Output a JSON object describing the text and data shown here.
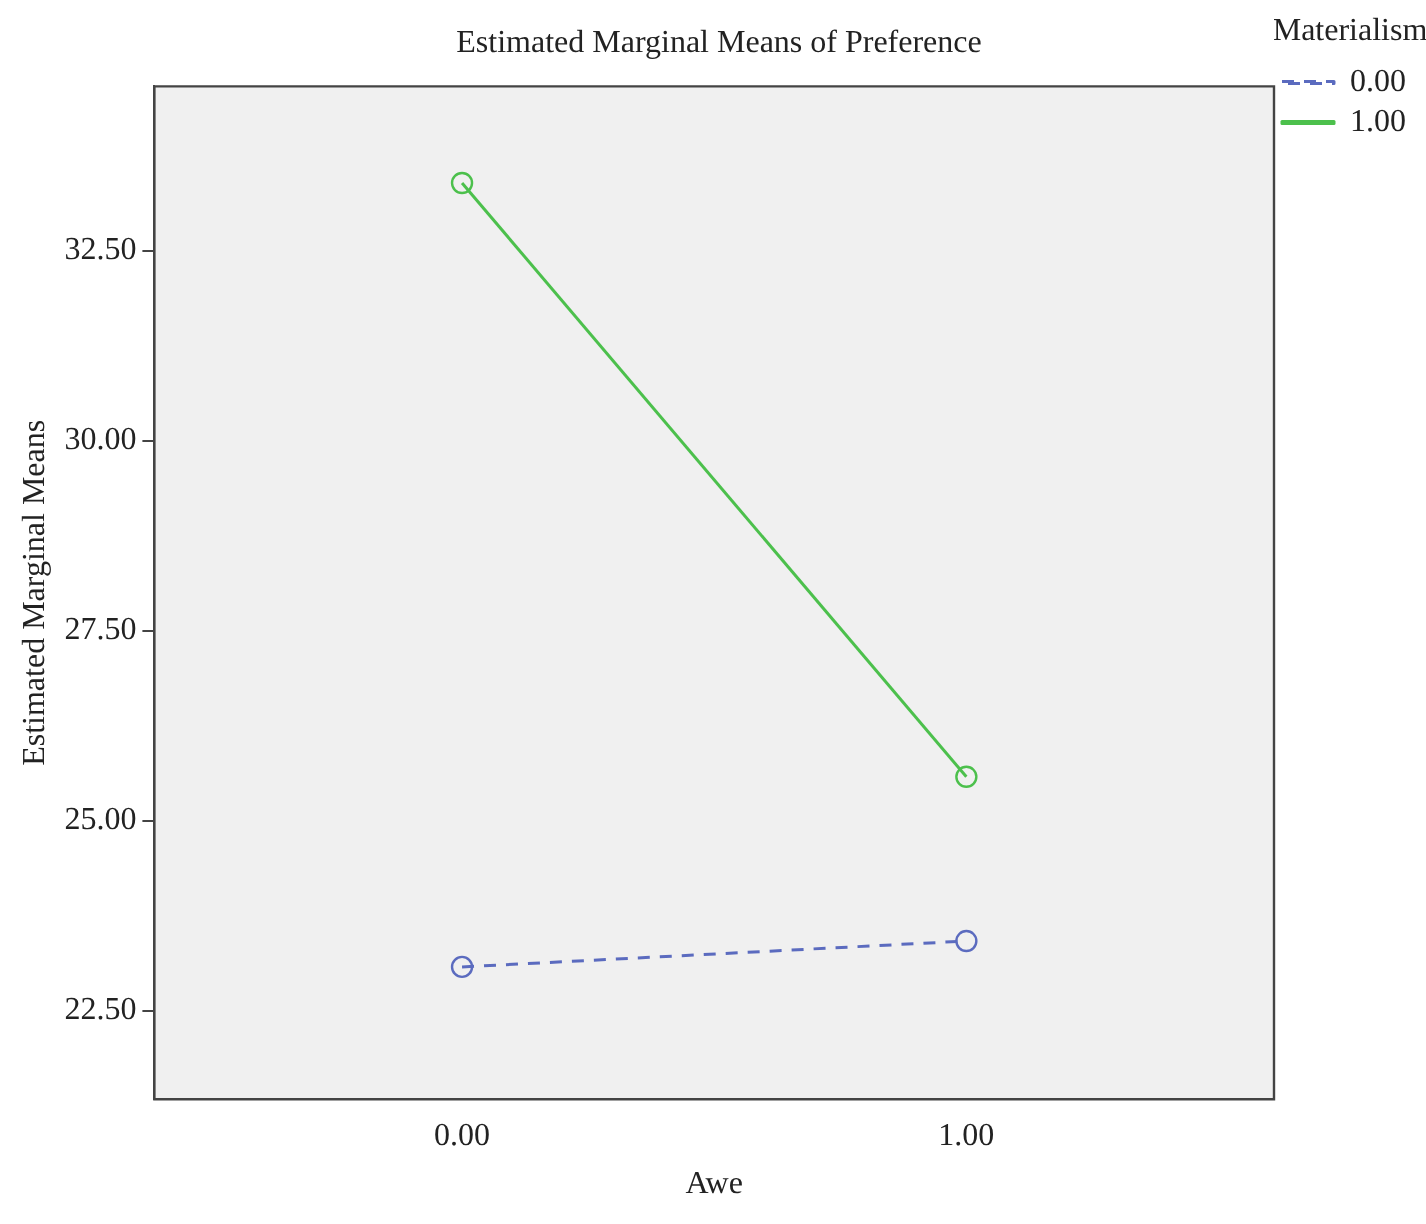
{
  "chart_data": {
    "type": "line",
    "title": "Estimated Marginal Means of Preference",
    "xlabel": "Awe",
    "ylabel": "Estimated Marginal Means",
    "legend_title": "Materialism",
    "x": [
      0,
      1
    ],
    "series": [
      {
        "name": "0.00",
        "color": "#5b6bbf",
        "values": [
          23.08,
          23.42
        ],
        "line_style": "dashed"
      },
      {
        "name": "1.00",
        "color": "#4cc04c",
        "values": [
          33.39,
          25.58
        ],
        "line_style": "solid"
      }
    ],
    "xlim": [
      -0.61,
      1.61
    ],
    "xticks": [
      {
        "value": 0,
        "label": "0.00"
      },
      {
        "value": 1,
        "label": "1.00"
      }
    ],
    "ylim": [
      21.34,
      34.66
    ],
    "yticks": [
      {
        "value": 22.5,
        "label": "22.50"
      },
      {
        "value": 25,
        "label": "25.00"
      },
      {
        "value": 27.5,
        "label": "27.50"
      },
      {
        "value": 30,
        "label": "30.00"
      },
      {
        "value": 32.5,
        "label": "32.50"
      }
    ],
    "grid": false,
    "legend": "right",
    "marker": "circle"
  }
}
